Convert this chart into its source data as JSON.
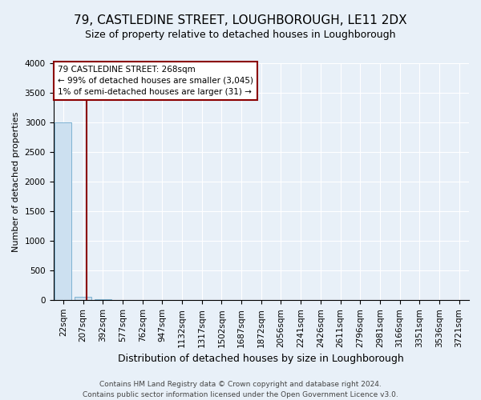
{
  "title": "79, CASTLEDINE STREET, LOUGHBOROUGH, LE11 2DX",
  "subtitle": "Size of property relative to detached houses in Loughborough",
  "xlabel": "Distribution of detached houses by size in Loughborough",
  "ylabel": "Number of detached properties",
  "footnote1": "Contains HM Land Registry data © Crown copyright and database right 2024.",
  "footnote2": "Contains public sector information licensed under the Open Government Licence v3.0.",
  "bar_labels": [
    "22sqm",
    "207sqm",
    "392sqm",
    "577sqm",
    "762sqm",
    "947sqm",
    "1132sqm",
    "1317sqm",
    "1502sqm",
    "1687sqm",
    "1872sqm",
    "2056sqm",
    "2241sqm",
    "2426sqm",
    "2611sqm",
    "2796sqm",
    "2981sqm",
    "3166sqm",
    "3351sqm",
    "3536sqm",
    "3721sqm"
  ],
  "bar_values": [
    3000,
    50,
    10,
    5,
    3,
    2,
    1,
    1,
    0,
    0,
    0,
    0,
    0,
    0,
    0,
    0,
    0,
    0,
    0,
    0,
    0
  ],
  "bar_color": "#cce0f0",
  "bar_edge_color": "#7fb3d3",
  "property_line_color": "#8b0000",
  "annotation_text": "79 CASTLEDINE STREET: 268sqm\n← 99% of detached houses are smaller (3,045)\n1% of semi-detached houses are larger (31) →",
  "annotation_box_color": "white",
  "annotation_box_edge_color": "#8b0000",
  "ylim": [
    0,
    4000
  ],
  "yticks": [
    0,
    500,
    1000,
    1500,
    2000,
    2500,
    3000,
    3500,
    4000
  ],
  "title_fontsize": 11,
  "subtitle_fontsize": 9,
  "axis_label_fontsize": 8,
  "tick_fontsize": 7.5,
  "annotation_fontsize": 7.5,
  "footnote_fontsize": 6.5,
  "background_color": "#e8f0f8",
  "plot_background": "#e8f0f8",
  "grid_color": "white"
}
